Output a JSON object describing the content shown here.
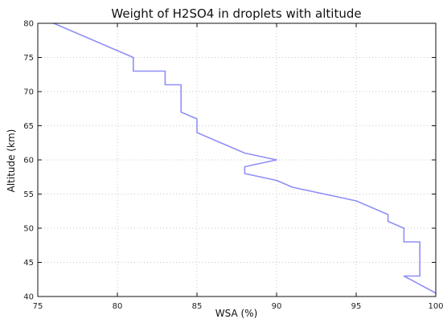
{
  "chart_data": {
    "type": "line",
    "title": "Weight of H2SO4 in droplets with altitude",
    "xlabel": "WSA (%)",
    "ylabel": "Altitude (km)",
    "xlim": [
      75,
      100
    ],
    "ylim": [
      40,
      80
    ],
    "xticks": [
      "75",
      "80",
      "85",
      "90",
      "95",
      "100"
    ],
    "yticks": [
      "40",
      "45",
      "50",
      "55",
      "60",
      "65",
      "70",
      "75",
      "80"
    ],
    "grid": true,
    "legend": "none",
    "series": [
      {
        "color": "#8f8ff7",
        "points": [
          {
            "x": 100,
            "y": 40.5
          },
          {
            "x": 98,
            "y": 43
          },
          {
            "x": 99,
            "y": 43
          },
          {
            "x": 99,
            "y": 48
          },
          {
            "x": 98,
            "y": 48
          },
          {
            "x": 98,
            "y": 50
          },
          {
            "x": 97,
            "y": 51
          },
          {
            "x": 97,
            "y": 52
          },
          {
            "x": 95,
            "y": 54
          },
          {
            "x": 91,
            "y": 56
          },
          {
            "x": 90,
            "y": 57
          },
          {
            "x": 88,
            "y": 58
          },
          {
            "x": 88,
            "y": 59
          },
          {
            "x": 90,
            "y": 60
          },
          {
            "x": 88,
            "y": 61
          },
          {
            "x": 85,
            "y": 64
          },
          {
            "x": 85,
            "y": 66
          },
          {
            "x": 84,
            "y": 67
          },
          {
            "x": 84,
            "y": 71
          },
          {
            "x": 83,
            "y": 71
          },
          {
            "x": 83,
            "y": 73
          },
          {
            "x": 81,
            "y": 73
          },
          {
            "x": 81,
            "y": 75
          },
          {
            "x": 76,
            "y": 80
          }
        ]
      }
    ]
  }
}
